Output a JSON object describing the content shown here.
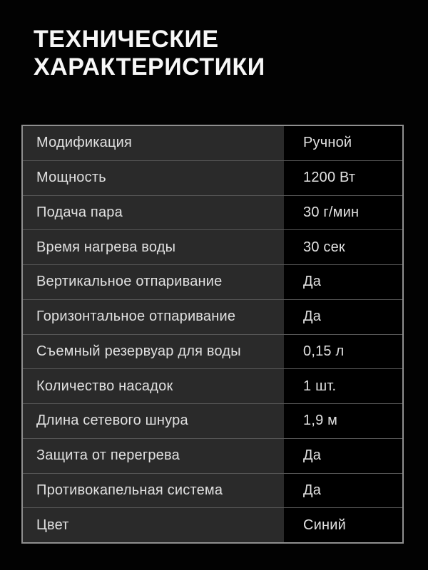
{
  "title": "ТЕХНИЧЕСКИЕ\nХАРАКТЕРИСТИКИ",
  "spec_table": {
    "rows": [
      {
        "label": "Модификация",
        "value": "Ручной"
      },
      {
        "label": "Мощность",
        "value": "1200 Вт"
      },
      {
        "label": "Подача пара",
        "value": "30 г/мин"
      },
      {
        "label": "Время нагрева воды",
        "value": "30 сек"
      },
      {
        "label": "Вертикальное отпаривание",
        "value": "Да"
      },
      {
        "label": "Горизонтальное отпаривание",
        "value": "Да"
      },
      {
        "label": "Съемный резервуар для воды",
        "value": "0,15 л"
      },
      {
        "label": "Количество насадок",
        "value": "1 шт."
      },
      {
        "label": "Длина сетевого шнура",
        "value": "1,9 м"
      },
      {
        "label": "Защита от перегрева",
        "value": "Да"
      },
      {
        "label": "Противокапельная система",
        "value": "Да"
      },
      {
        "label": "Цвет",
        "value": "Синий"
      }
    ]
  },
  "colors": {
    "page_background": "#020202",
    "label_cell_background": "#2a2a2a",
    "value_cell_background": "#000000",
    "outer_border": "#8f8f8f",
    "row_separator": "#565656",
    "title_text": "#f7f7f7",
    "cell_text": "#e0e0e0"
  }
}
